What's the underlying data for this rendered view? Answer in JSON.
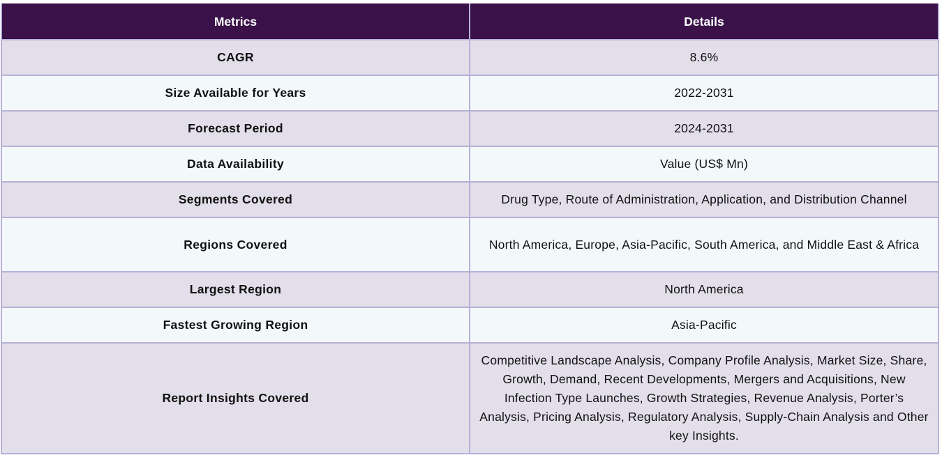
{
  "table": {
    "headers": [
      "Metrics",
      "Details"
    ],
    "rows": [
      {
        "metric": "CAGR",
        "detail": "8.6%"
      },
      {
        "metric": "Size Available for Years",
        "detail": "2022-2031"
      },
      {
        "metric": "Forecast Period",
        "detail": "2024-2031"
      },
      {
        "metric": "Data Availability",
        "detail": "Value (US$ Mn)"
      },
      {
        "metric": "Segments Covered",
        "detail": "Drug Type, Route of Administration, Application, and Distribution Channel"
      },
      {
        "metric": "Regions Covered",
        "detail": "North America, Europe, Asia-Pacific, South America, and Middle East & Africa"
      },
      {
        "metric": "Largest Region",
        "detail": "North America"
      },
      {
        "metric": "Fastest Growing Region",
        "detail": "Asia-Pacific"
      },
      {
        "metric": "Report Insights Covered",
        "detail": "Competitive Landscape Analysis, Company Profile Analysis, Market Size, Share, Growth, Demand, Recent Developments, Mergers and Acquisitions, New Infection Type Launches, Growth Strategies, Revenue Analysis, Porter’s Analysis, Pricing Analysis, Regulatory Analysis, Supply-Chain Analysis and Other key Insights."
      }
    ]
  },
  "colors": {
    "header_bg": "#3a1249",
    "row_odd_bg": "#e2deea",
    "row_even_bg": "#f3f8fb",
    "border": "#b7b0d6"
  }
}
